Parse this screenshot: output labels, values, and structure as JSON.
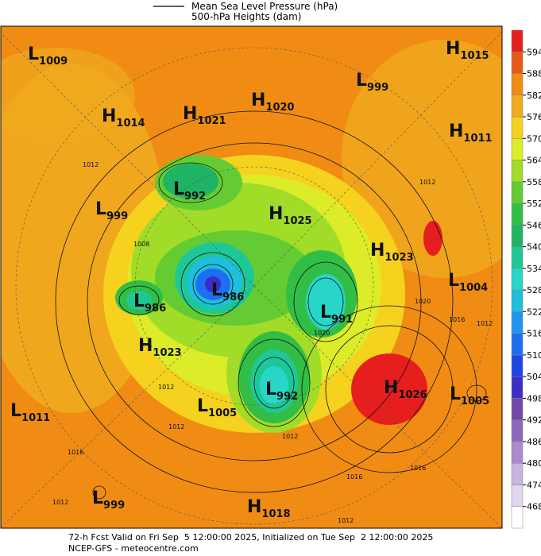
{
  "header": {
    "lines": [
      "Mean Sea Level Pressure (hPa)",
      "500-hPa Heights (dam)"
    ]
  },
  "colorbar": {
    "ticks": [
      468,
      474,
      480,
      486,
      492,
      498,
      504,
      510,
      516,
      522,
      528,
      534,
      540,
      546,
      552,
      558,
      564,
      570,
      576,
      582,
      588,
      594
    ],
    "colors": [
      "#ffffff",
      "#e2d6ec",
      "#c8b4de",
      "#aa8ccc",
      "#8c68ba",
      "#7248a8",
      "#3c2cc8",
      "#1e46e6",
      "#1e6ef0",
      "#1e96f0",
      "#1ebedc",
      "#28d6c8",
      "#1ec896",
      "#1eb464",
      "#32be46",
      "#64cc32",
      "#a0dc28",
      "#dcec28",
      "#f5d21e",
      "#f0aa1e",
      "#f08c14",
      "#e65a14",
      "#e61e1e"
    ]
  },
  "centers": [
    {
      "type": "L",
      "value": 1009
    },
    {
      "type": "H",
      "value": 1014
    },
    {
      "type": "H",
      "value": 1021
    },
    {
      "type": "H",
      "value": 1020
    },
    {
      "type": "L",
      "value": 999
    },
    {
      "type": "H",
      "value": 1015
    },
    {
      "type": "H",
      "value": 1011
    },
    {
      "type": "L",
      "value": 992
    },
    {
      "type": "L",
      "value": 999
    },
    {
      "type": "H",
      "value": 1025
    },
    {
      "type": "H",
      "value": 1023
    },
    {
      "type": "L",
      "value": 986
    },
    {
      "type": "L",
      "value": 986
    },
    {
      "type": "L",
      "value": 991
    },
    {
      "type": "L",
      "value": 1004
    },
    {
      "type": "H",
      "value": 1023
    },
    {
      "type": "L",
      "value": 992
    },
    {
      "type": "H",
      "value": 1026
    },
    {
      "type": "L",
      "value": 1005
    },
    {
      "type": "L",
      "value": 1011
    },
    {
      "type": "L",
      "value": 1005
    },
    {
      "type": "L",
      "value": 999
    },
    {
      "type": "H",
      "value": 1018
    }
  ],
  "contour_labels": [
    1012,
    1012,
    1012,
    1012,
    1012,
    1012,
    1012,
    1016,
    1016,
    1016,
    1016,
    1008,
    1020,
    1020,
    1012
  ],
  "footer": {
    "lines": [
      "72-h Fcst Valid on Fri Sep  5 12:00:00 2025, Initialized on Tue Sep  2 12:00:00 2025",
      "NCEP-GFS  - meteocentre.com"
    ]
  }
}
